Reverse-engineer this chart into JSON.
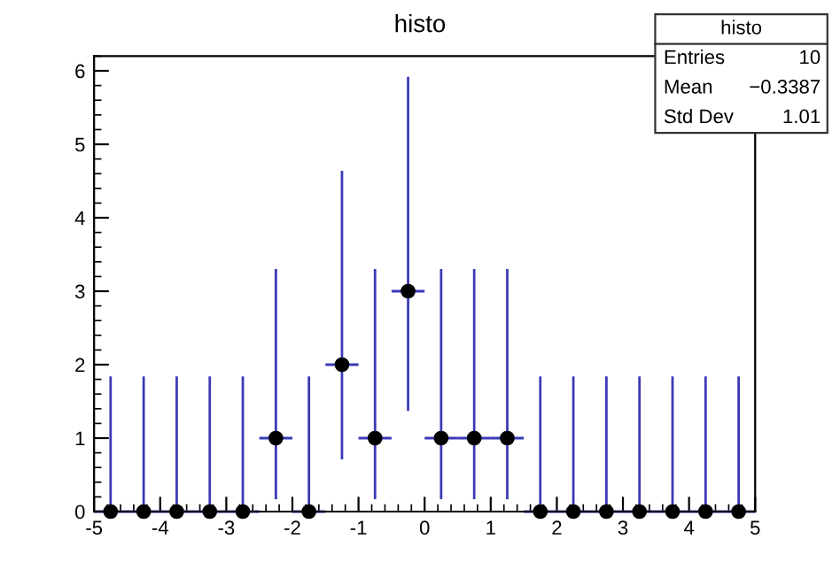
{
  "chart_data": {
    "type": "scatter",
    "title": "histo",
    "x": [
      -4.75,
      -4.25,
      -3.75,
      -3.25,
      -2.75,
      -2.25,
      -1.75,
      -1.25,
      -0.75,
      -0.25,
      0.25,
      0.75,
      1.25,
      1.75,
      2.25,
      2.75,
      3.25,
      3.75,
      4.25,
      4.75
    ],
    "series": [
      {
        "color": "#000000",
        "values": [
          0,
          0,
          0,
          0,
          0,
          1,
          0,
          2,
          1,
          3,
          1,
          1,
          1,
          0,
          0,
          0,
          0,
          0,
          0,
          0
        ],
        "errors": [
          [
            0,
            1.84
          ],
          [
            0,
            1.84
          ],
          [
            0,
            1.84
          ],
          [
            0,
            1.84
          ],
          [
            0,
            1.84
          ],
          [
            0.17,
            3.3
          ],
          [
            0,
            1.84
          ],
          [
            0.71,
            4.64
          ],
          [
            0.17,
            3.3
          ],
          [
            1.37,
            5.92
          ],
          [
            0.17,
            3.3
          ],
          [
            0.17,
            3.3
          ],
          [
            0.17,
            3.3
          ],
          [
            0,
            1.84
          ],
          [
            0,
            1.84
          ],
          [
            0,
            1.84
          ],
          [
            0,
            1.84
          ],
          [
            0,
            1.84
          ],
          [
            0,
            1.84
          ],
          [
            0,
            1.84
          ]
        ],
        "xerrors": [
          0.25,
          0.25,
          0.25,
          0.25,
          0.25,
          0.25,
          0.25,
          0.25,
          0.25,
          0.25,
          0.25,
          0.25,
          0.25,
          0.25,
          0.25,
          0.25,
          0.25,
          0.25,
          0.25,
          0.25
        ]
      }
    ],
    "marker": "circle",
    "xlim": [
      -5,
      5
    ],
    "xticks": [
      -5,
      -4,
      -3,
      -2,
      -1,
      0,
      1,
      2,
      3,
      4,
      5
    ],
    "ylim": [
      0,
      6.2
    ],
    "yticks": [
      0,
      1,
      2,
      3,
      4,
      5,
      6
    ],
    "grid": false,
    "legend": false,
    "annotations": [
      "histo",
      "Entries",
      "10",
      "Mean",
      "−0.3387",
      "Std Dev",
      "1.01"
    ]
  }
}
